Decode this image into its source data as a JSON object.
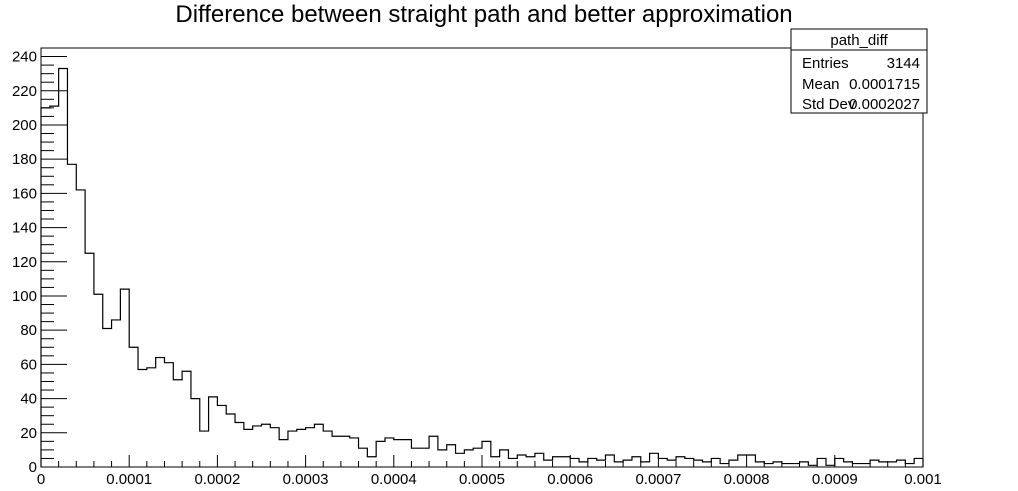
{
  "chart_data": {
    "type": "histogram",
    "title": "Difference between straight path and better approximation",
    "xlabel": "",
    "ylabel": "",
    "xlim": [
      0,
      0.001
    ],
    "ylim": [
      0,
      245
    ],
    "x_ticks": [
      "0",
      "0.0001",
      "0.0002",
      "0.0003",
      "0.0004",
      "0.0005",
      "0.0006",
      "0.0007",
      "0.0008",
      "0.0009",
      "0.001"
    ],
    "x_tick_values": [
      0,
      0.0001,
      0.0002,
      0.0003,
      0.0004,
      0.0005,
      0.0006,
      0.0007,
      0.0008,
      0.0009,
      0.001
    ],
    "y_ticks": [
      "0",
      "20",
      "40",
      "60",
      "80",
      "100",
      "120",
      "140",
      "160",
      "180",
      "200",
      "220",
      "240"
    ],
    "y_tick_values": [
      0,
      20,
      40,
      60,
      80,
      100,
      120,
      140,
      160,
      180,
      200,
      220,
      240
    ],
    "bins": {
      "count": 100,
      "min": 0,
      "max": 0.001,
      "values": [
        210,
        211,
        233,
        177,
        162,
        125,
        101,
        81,
        86,
        104,
        70,
        57,
        58,
        64,
        61,
        51,
        56,
        40,
        21,
        41,
        36,
        31,
        26,
        22,
        24,
        25,
        23,
        16,
        21,
        22,
        23,
        25,
        21,
        18,
        18,
        17,
        11,
        6,
        15,
        17,
        16,
        16,
        11,
        11,
        18,
        10,
        13,
        8,
        10,
        11,
        15,
        6,
        10,
        5,
        7,
        6,
        8,
        4,
        6,
        6,
        5,
        3,
        5,
        4,
        7,
        3,
        4,
        6,
        3,
        8,
        5,
        4,
        6,
        5,
        4,
        3,
        5,
        2,
        4,
        7,
        7,
        3,
        2,
        3,
        2,
        2,
        3,
        1,
        5,
        1,
        5,
        3,
        2,
        2,
        4,
        3,
        3,
        4,
        2,
        5
      ]
    },
    "grid": false,
    "stats_box": {
      "placement": "top-right",
      "name": "path_diff",
      "rows": [
        {
          "label": "Entries",
          "value": "3144"
        },
        {
          "label": "Mean",
          "value": "0.0001715"
        },
        {
          "label": "Std Dev",
          "value": "0.0002027"
        }
      ]
    },
    "colors": {
      "line": "#000000",
      "background": "#ffffff"
    }
  }
}
